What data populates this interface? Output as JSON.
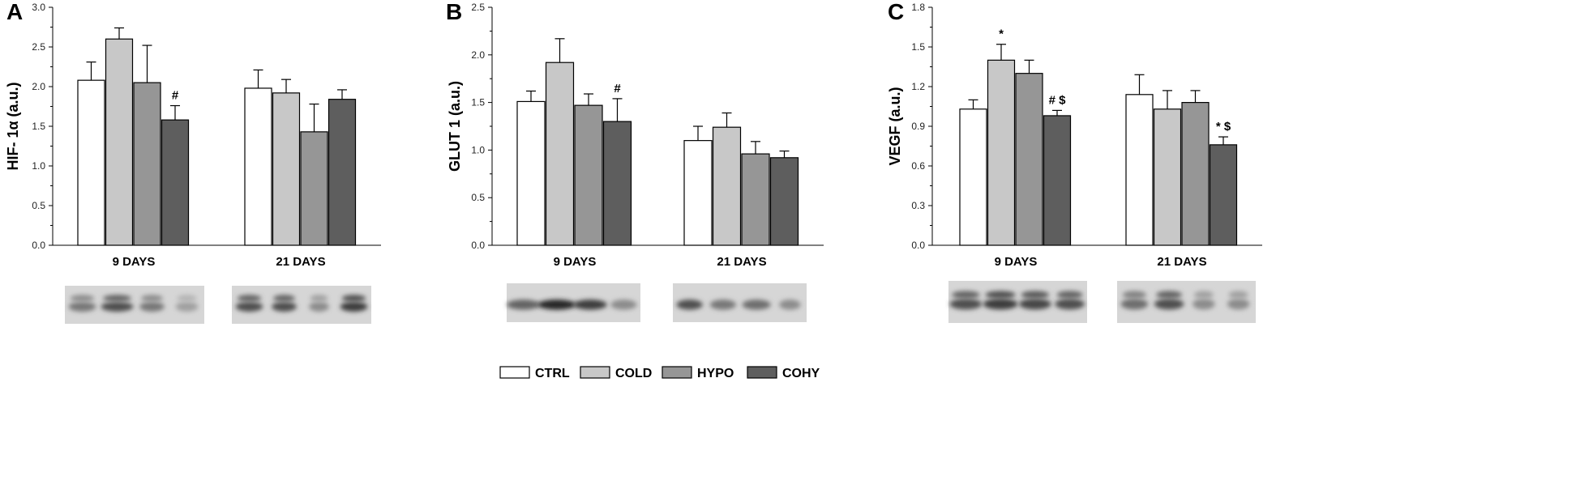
{
  "chart_data": [
    {
      "type": "bar",
      "panel": "A",
      "ylabel": "HIF- 1α (a.u.)",
      "ylim": [
        0,
        3.0
      ],
      "yticks": [
        "0.0",
        "0.5",
        "1.0",
        "1.5",
        "2.0",
        "2.5",
        "3.0"
      ],
      "categories": [
        "9 DAYS",
        "21 DAYS"
      ],
      "series": [
        {
          "name": "CTRL",
          "color": "#ffffff",
          "values": [
            2.08,
            1.98
          ],
          "errors": [
            0.23,
            0.23
          ]
        },
        {
          "name": "COLD",
          "color": "#c8c8c8",
          "values": [
            2.6,
            1.92
          ],
          "errors": [
            0.14,
            0.17
          ]
        },
        {
          "name": "HYPO",
          "color": "#969696",
          "values": [
            2.05,
            1.43
          ],
          "errors": [
            0.47,
            0.35
          ]
        },
        {
          "name": "COHY",
          "color": "#5e5e5e",
          "values": [
            1.58,
            1.84
          ],
          "errors": [
            0.18,
            0.12
          ]
        }
      ],
      "annotations": [
        {
          "category": 0,
          "series": 3,
          "text": "#"
        }
      ]
    },
    {
      "type": "bar",
      "panel": "B",
      "ylabel": "GLUT 1 (a.u.)",
      "ylim": [
        0,
        2.5
      ],
      "yticks": [
        "0.0",
        "0.5",
        "1.0",
        "1.5",
        "2.0",
        "2.5"
      ],
      "categories": [
        "9 DAYS",
        "21 DAYS"
      ],
      "series": [
        {
          "name": "CTRL",
          "color": "#ffffff",
          "values": [
            1.51,
            1.1
          ],
          "errors": [
            0.11,
            0.15
          ]
        },
        {
          "name": "COLD",
          "color": "#c8c8c8",
          "values": [
            1.92,
            1.24
          ],
          "errors": [
            0.25,
            0.15
          ]
        },
        {
          "name": "HYPO",
          "color": "#969696",
          "values": [
            1.47,
            0.96
          ],
          "errors": [
            0.12,
            0.13
          ]
        },
        {
          "name": "COHY",
          "color": "#5e5e5e",
          "values": [
            1.3,
            0.92
          ],
          "errors": [
            0.24,
            0.07
          ]
        }
      ],
      "annotations": [
        {
          "category": 0,
          "series": 3,
          "text": "#"
        }
      ]
    },
    {
      "type": "bar",
      "panel": "C",
      "ylabel": "VEGF (a.u.)",
      "ylim": [
        0,
        1.8
      ],
      "yticks": [
        "0.0",
        "0.3",
        "0.6",
        "0.9",
        "1.2",
        "1.5",
        "1.8"
      ],
      "categories": [
        "9 DAYS",
        "21 DAYS"
      ],
      "series": [
        {
          "name": "CTRL",
          "color": "#ffffff",
          "values": [
            1.03,
            1.14
          ],
          "errors": [
            0.07,
            0.15
          ]
        },
        {
          "name": "COLD",
          "color": "#c8c8c8",
          "values": [
            1.4,
            1.03
          ],
          "errors": [
            0.12,
            0.14
          ]
        },
        {
          "name": "HYPO",
          "color": "#969696",
          "values": [
            1.3,
            1.08
          ],
          "errors": [
            0.1,
            0.09
          ]
        },
        {
          "name": "COHY",
          "color": "#5e5e5e",
          "values": [
            0.98,
            0.76
          ],
          "errors": [
            0.04,
            0.06
          ]
        }
      ],
      "annotations": [
        {
          "category": 0,
          "series": 1,
          "text": "*"
        },
        {
          "category": 0,
          "series": 3,
          "text": "# $"
        },
        {
          "category": 1,
          "series": 3,
          "text": "* $"
        }
      ]
    }
  ],
  "blots": [
    {
      "panel": "A",
      "lanes": [
        [
          {
            "d": 0.55,
            "w": 0.55
          },
          {
            "d": 0.75,
            "w": 0.65
          },
          {
            "d": 0.55,
            "w": 0.5
          },
          {
            "d": 0.35,
            "w": 0.45
          }
        ],
        [
          {
            "d": 0.75,
            "w": 0.55
          },
          {
            "d": 0.75,
            "w": 0.5
          },
          {
            "d": 0.45,
            "w": 0.4
          },
          {
            "d": 0.85,
            "w": 0.55
          }
        ]
      ]
    },
    {
      "panel": "B",
      "lanes": [
        [
          {
            "d": 0.65,
            "w": 0.7
          },
          {
            "d": 0.95,
            "w": 0.8
          },
          {
            "d": 0.85,
            "w": 0.7
          },
          {
            "d": 0.45,
            "w": 0.55
          }
        ],
        [
          {
            "d": 0.75,
            "w": 0.55
          },
          {
            "d": 0.55,
            "w": 0.55
          },
          {
            "d": 0.6,
            "w": 0.6
          },
          {
            "d": 0.45,
            "w": 0.45
          }
        ]
      ]
    },
    {
      "panel": "C",
      "lanes": [
        [
          {
            "d": 0.75,
            "w": 0.65
          },
          {
            "d": 0.85,
            "w": 0.7
          },
          {
            "d": 0.8,
            "w": 0.65
          },
          {
            "d": 0.75,
            "w": 0.6
          }
        ],
        [
          {
            "d": 0.6,
            "w": 0.55
          },
          {
            "d": 0.75,
            "w": 0.6
          },
          {
            "d": 0.45,
            "w": 0.45
          },
          {
            "d": 0.45,
            "w": 0.45
          }
        ]
      ]
    }
  ],
  "legend": {
    "items": [
      {
        "label": "CTRL",
        "color": "#ffffff"
      },
      {
        "label": "COLD",
        "color": "#c8c8c8"
      },
      {
        "label": "HYPO",
        "color": "#969696"
      },
      {
        "label": "COHY",
        "color": "#5e5e5e"
      }
    ]
  }
}
